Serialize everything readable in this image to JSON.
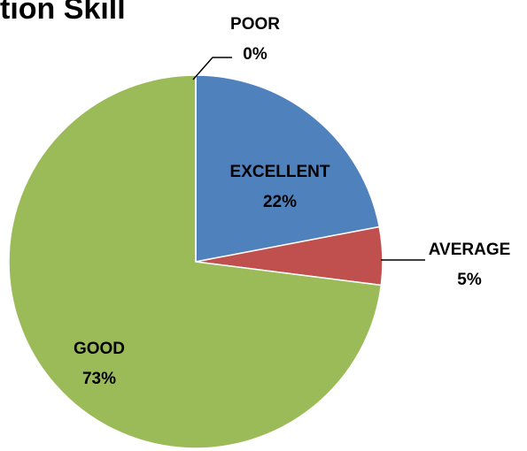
{
  "chart_data": {
    "type": "pie",
    "title": "tion Skill",
    "categories": [
      "EXCELLENT",
      "AVERAGE",
      "GOOD",
      "POOR"
    ],
    "values": [
      22,
      5,
      73,
      0
    ],
    "value_labels": [
      "22%",
      "5%",
      "73%",
      "0%"
    ],
    "colors": [
      "#4f81bd",
      "#c0504d",
      "#9bbb59",
      "#8064a2"
    ]
  }
}
